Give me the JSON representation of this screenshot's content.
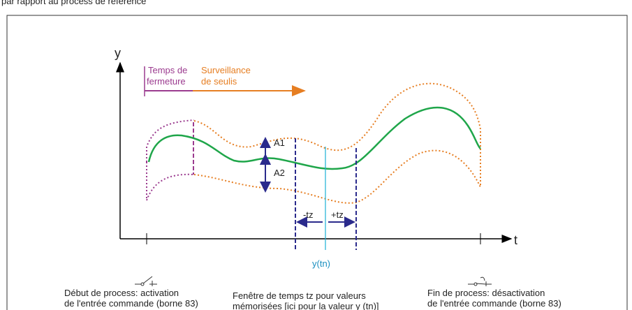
{
  "header": {
    "text": "par rapport au process de référence"
  },
  "axes": {
    "y": "y",
    "t": "t"
  },
  "phases": {
    "closing": [
      "Temps de",
      "fermeture"
    ],
    "monitoring": [
      "Surveillance",
      "de seulis"
    ]
  },
  "amplitudes": {
    "a1": "A1",
    "a2": "A2"
  },
  "window": {
    "minus": "-tz",
    "plus": "+tz",
    "point": "y(tn)"
  },
  "captions": {
    "start": [
      "Début de process: activation",
      "de l'entrée commande (borne 83)"
    ],
    "window": [
      "Fenêtre de temps tz pour valeurs",
      "mémorisées [ici pour la valeur y (tn)]"
    ],
    "end": [
      "Fin de process: désactivation",
      "de l'entrée commande (borne 83)"
    ]
  }
}
